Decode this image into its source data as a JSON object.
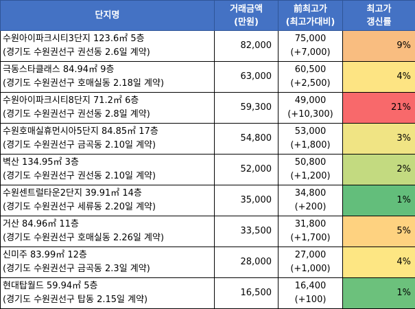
{
  "header": {
    "name": "단지명",
    "amount_line1": "거래금액",
    "amount_line2": "(만원)",
    "prev_line1": "前최고가",
    "prev_line2": "(최고가대비)",
    "rate_line1": "최고가",
    "rate_line2": "갱신률"
  },
  "rows": [
    {
      "name": "수원아이파크시티3단지 123.6㎡ 5층",
      "detail": "(경기도 수원권선구 권선동 2.6일 계약)",
      "amount": "82,000",
      "prev": "75,000",
      "diff": "(+7,000)",
      "rate": "9%",
      "color": "#f9bd80"
    },
    {
      "name": "극동스타클래스 84.94㎡ 9층",
      "detail": "(경기도 수원권선구 호매실동 2.18일 계약)",
      "amount": "63,000",
      "prev": "60,500",
      "diff": "(+2,500)",
      "rate": "4%",
      "color": "#fde483"
    },
    {
      "name": "수원아이파크시티8단지 71.2㎡ 6층",
      "detail": "(경기도 수원권선구 권선동 2.8일 계약)",
      "amount": "59,300",
      "prev": "49,000",
      "diff": "(+10,300)",
      "rate": "21%",
      "color": "#f8696b"
    },
    {
      "name": "수원호매실휴먼시아5단지 84.85㎡ 17층",
      "detail": "(경기도 수원권선구 금곡동 2.10일 계약)",
      "amount": "54,800",
      "prev": "53,000",
      "diff": "(+1,800)",
      "rate": "3%",
      "color": "#f0e484"
    },
    {
      "name": "벽산 134.95㎡ 3층",
      "detail": "(경기도 수원권선구 권선동 2.10일 계약)",
      "amount": "52,000",
      "prev": "50,800",
      "diff": "(+1,200)",
      "rate": "2%",
      "color": "#c3da80"
    },
    {
      "name": "수원센트럴타운2단지 39.91㎡ 14층",
      "detail": "(경기도 수원권선구 세류동 2.20일 계약)",
      "amount": "35,000",
      "prev": "34,800",
      "diff": "(+200)",
      "rate": "1%",
      "color": "#63be7b"
    },
    {
      "name": "거산 84.96㎡ 11층",
      "detail": "(경기도 수원권선구 호매실동 2.26일 계약)",
      "amount": "33,500",
      "prev": "31,800",
      "diff": "(+1,700)",
      "rate": "5%",
      "color": "#fed280"
    },
    {
      "name": "신미주 83.99㎡ 12층",
      "detail": "(경기도 수원권선구 금곡동 2.3일 계약)",
      "amount": "28,000",
      "prev": "27,000",
      "diff": "(+1,000)",
      "rate": "4%",
      "color": "#fde683"
    },
    {
      "name": "현대탑월드 59.94㎡ 5층",
      "detail": "(경기도 수원권선구 탑동 2.15일 계약)",
      "amount": "16,500",
      "prev": "16,400",
      "diff": "(+100)",
      "rate": "1%",
      "color": "#6cc17c"
    }
  ]
}
